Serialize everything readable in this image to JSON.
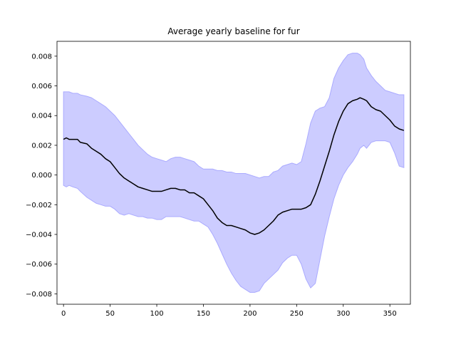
{
  "chart_data": {
    "type": "line",
    "title": "Average yearly baseline for fur",
    "xlabel": "",
    "ylabel": "",
    "xlim": [
      -7,
      372
    ],
    "ylim": [
      -0.0087,
      0.009
    ],
    "x_ticks": [
      0,
      50,
      100,
      150,
      200,
      250,
      300,
      350
    ],
    "y_ticks": [
      -0.008,
      -0.006,
      -0.004,
      -0.002,
      0.0,
      0.002,
      0.004,
      0.006,
      0.008
    ],
    "x_tick_labels": [
      "0",
      "50",
      "100",
      "150",
      "200",
      "250",
      "300",
      "350"
    ],
    "y_tick_labels": [
      "−0.008",
      "−0.006",
      "−0.004",
      "−0.002",
      "0.000",
      "0.002",
      "0.004",
      "0.006",
      "0.008"
    ],
    "grid": false,
    "legend": "none",
    "line_color": "#000000",
    "band_color": "#ccccff",
    "band_edge_color": "#aaaaff",
    "series": [
      {
        "x": [
          0,
          3,
          6,
          10,
          15,
          18,
          25,
          30,
          35,
          40,
          45,
          50,
          55,
          60,
          65,
          70,
          75,
          80,
          85,
          90,
          95,
          100,
          105,
          110,
          115,
          120,
          125,
          130,
          135,
          140,
          145,
          150,
          155,
          160,
          165,
          170,
          175,
          180,
          185,
          190,
          195,
          200,
          205,
          210,
          215,
          220,
          225,
          230,
          235,
          240,
          245,
          250,
          255,
          260,
          265,
          270,
          275,
          280,
          285,
          290,
          295,
          300,
          305,
          310,
          315,
          318,
          322,
          325,
          330,
          335,
          340,
          345,
          350,
          355,
          360,
          365
        ],
        "mean": [
          0.0024,
          0.0025,
          0.0024,
          0.0024,
          0.0024,
          0.0022,
          0.0021,
          0.0018,
          0.0016,
          0.0014,
          0.0011,
          0.0009,
          0.0005,
          0.0001,
          -0.0002,
          -0.0004,
          -0.0006,
          -0.0008,
          -0.0009,
          -0.001,
          -0.0011,
          -0.0011,
          -0.0011,
          -0.001,
          -0.0009,
          -0.0009,
          -0.001,
          -0.001,
          -0.0012,
          -0.0012,
          -0.0014,
          -0.0016,
          -0.002,
          -0.0024,
          -0.0029,
          -0.0032,
          -0.0034,
          -0.0034,
          -0.0035,
          -0.0036,
          -0.0037,
          -0.0039,
          -0.004,
          -0.0039,
          -0.0037,
          -0.0034,
          -0.0031,
          -0.0027,
          -0.0025,
          -0.0024,
          -0.0023,
          -0.0023,
          -0.0023,
          -0.0022,
          -0.002,
          -0.0013,
          -0.0004,
          0.0006,
          0.0016,
          0.0027,
          0.0036,
          0.0043,
          0.0048,
          0.005,
          0.0051,
          0.0052,
          0.0051,
          0.005,
          0.0046,
          0.0044,
          0.0043,
          0.004,
          0.0037,
          0.0033,
          0.0031,
          0.003
        ],
        "upper": [
          0.0056,
          0.0056,
          0.0056,
          0.0055,
          0.0055,
          0.0054,
          0.0053,
          0.0052,
          0.005,
          0.0048,
          0.0046,
          0.0043,
          0.004,
          0.0036,
          0.0032,
          0.0028,
          0.0024,
          0.002,
          0.0017,
          0.0014,
          0.0012,
          0.0011,
          0.001,
          0.0009,
          0.0011,
          0.0012,
          0.0012,
          0.0011,
          0.001,
          0.0009,
          0.0006,
          0.0004,
          0.0004,
          0.0004,
          0.0003,
          0.0003,
          0.0002,
          0.0002,
          0.0001,
          0.0001,
          0.0001,
          0.0,
          -0.0001,
          -0.0002,
          -0.0001,
          -0.0001,
          0.0002,
          0.0003,
          0.0006,
          0.0007,
          0.0008,
          0.0007,
          0.0009,
          0.0021,
          0.0035,
          0.0043,
          0.0045,
          0.0046,
          0.0052,
          0.0065,
          0.0072,
          0.0077,
          0.0081,
          0.0082,
          0.0082,
          0.0081,
          0.0078,
          0.0072,
          0.0067,
          0.0063,
          0.006,
          0.0057,
          0.0056,
          0.0055,
          0.0054,
          0.0054
        ],
        "lower": [
          -0.0007,
          -0.0008,
          -0.0007,
          -0.0008,
          -0.0009,
          -0.0011,
          -0.0015,
          -0.0017,
          -0.0019,
          -0.002,
          -0.0021,
          -0.0021,
          -0.0023,
          -0.0026,
          -0.0027,
          -0.0026,
          -0.0027,
          -0.0028,
          -0.0028,
          -0.0029,
          -0.0029,
          -0.003,
          -0.003,
          -0.0028,
          -0.0028,
          -0.0028,
          -0.0028,
          -0.0029,
          -0.003,
          -0.0031,
          -0.0031,
          -0.0033,
          -0.0035,
          -0.004,
          -0.0046,
          -0.0053,
          -0.006,
          -0.0066,
          -0.0071,
          -0.0075,
          -0.0077,
          -0.0079,
          -0.0079,
          -0.0078,
          -0.0073,
          -0.007,
          -0.0067,
          -0.0064,
          -0.0059,
          -0.0056,
          -0.0054,
          -0.0054,
          -0.006,
          -0.007,
          -0.0076,
          -0.0073,
          -0.0057,
          -0.0041,
          -0.0028,
          -0.0016,
          -0.0007,
          0.0,
          0.0005,
          0.0009,
          0.0014,
          0.0018,
          0.002,
          0.0018,
          0.0022,
          0.0023,
          0.0023,
          0.0023,
          0.0022,
          0.0015,
          0.0006,
          0.0005
        ]
      }
    ]
  }
}
